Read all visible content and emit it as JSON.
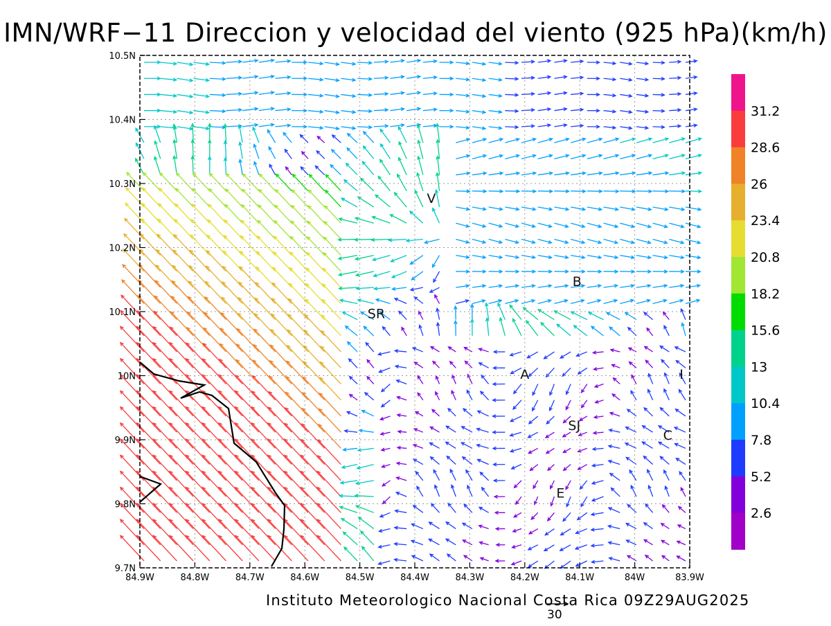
{
  "title": "IMN/WRF−11 Direccion y velocidad del viento (925 hPa)(km/h)",
  "footer": "Instituto Meteorologico Nacional Costa Rica 09Z29AUG2025",
  "reference_vector": {
    "value": "30"
  },
  "map": {
    "lon_range": [
      -84.9,
      -83.9
    ],
    "lat_range": [
      9.7,
      10.5
    ],
    "x_ticks": [
      "84.9W",
      "84.8W",
      "84.7W",
      "84.6W",
      "84.5W",
      "84.4W",
      "84.3W",
      "84.2W",
      "84.1W",
      "84W",
      "83.9W"
    ],
    "y_ticks": [
      "9.7N",
      "9.8N",
      "9.9N",
      "10N",
      "10.1N",
      "10.2N",
      "10.3N",
      "10.4N",
      "10.5N"
    ],
    "grid": true,
    "station_labels": [
      {
        "text": "V",
        "lon": -84.37,
        "lat": 10.27
      },
      {
        "text": "B",
        "lon": -84.105,
        "lat": 10.14
      },
      {
        "text": "SR",
        "lon": -84.47,
        "lat": 10.09
      },
      {
        "text": "A",
        "lon": -84.2,
        "lat": 9.995
      },
      {
        "text": "I",
        "lon": -83.915,
        "lat": 9.995
      },
      {
        "text": "SJ",
        "lon": -84.11,
        "lat": 9.915
      },
      {
        "text": "C",
        "lon": -83.94,
        "lat": 9.9
      },
      {
        "text": "E",
        "lon": -84.135,
        "lat": 9.81
      }
    ]
  },
  "colorbar": {
    "labels": [
      "31.2",
      "28.6",
      "26",
      "23.4",
      "20.8",
      "18.2",
      "15.6",
      "13",
      "10.4",
      "7.8",
      "5.2",
      "2.6"
    ],
    "colors": [
      "#f0148c",
      "#fa3c3c",
      "#f08228",
      "#e6af2d",
      "#e6dc32",
      "#a0e632",
      "#00dc00",
      "#00d28c",
      "#00c8c8",
      "#00a0ff",
      "#1e3cff",
      "#8200dc",
      "#a000c8"
    ]
  }
}
